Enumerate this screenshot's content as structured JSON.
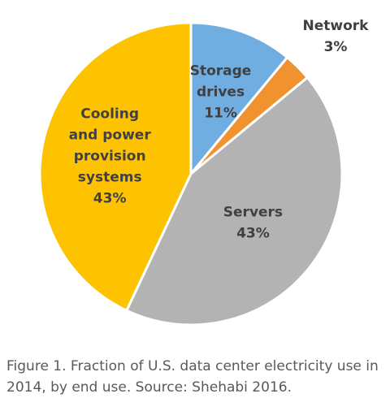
{
  "chart_data": {
    "type": "pie",
    "start_angle_deg": 0,
    "direction": "clockwise",
    "slices": [
      {
        "label_lines": [
          "Storage",
          "drives"
        ],
        "percent_label": "11%",
        "value": 11,
        "color": "#70ADE0",
        "label_color": "#404040",
        "label_position": "inside"
      },
      {
        "label_lines": [
          "Network"
        ],
        "percent_label": "3%",
        "value": 3,
        "color": "#F0922E",
        "label_color": "#404040",
        "label_position": "outside"
      },
      {
        "label_lines": [
          "Servers"
        ],
        "percent_label": "43%",
        "value": 43,
        "color": "#B3B3B3",
        "label_color": "#404040",
        "label_position": "inside"
      },
      {
        "label_lines": [
          "Cooling",
          "and power",
          "provision",
          "systems"
        ],
        "percent_label": "43%",
        "value": 43,
        "color": "#FDC300",
        "label_color": "#404040",
        "label_position": "inside"
      }
    ]
  },
  "caption": "Figure 1. Fraction of U.S. data center electricity use in 2014, by end use. Source: Shehabi 2016."
}
